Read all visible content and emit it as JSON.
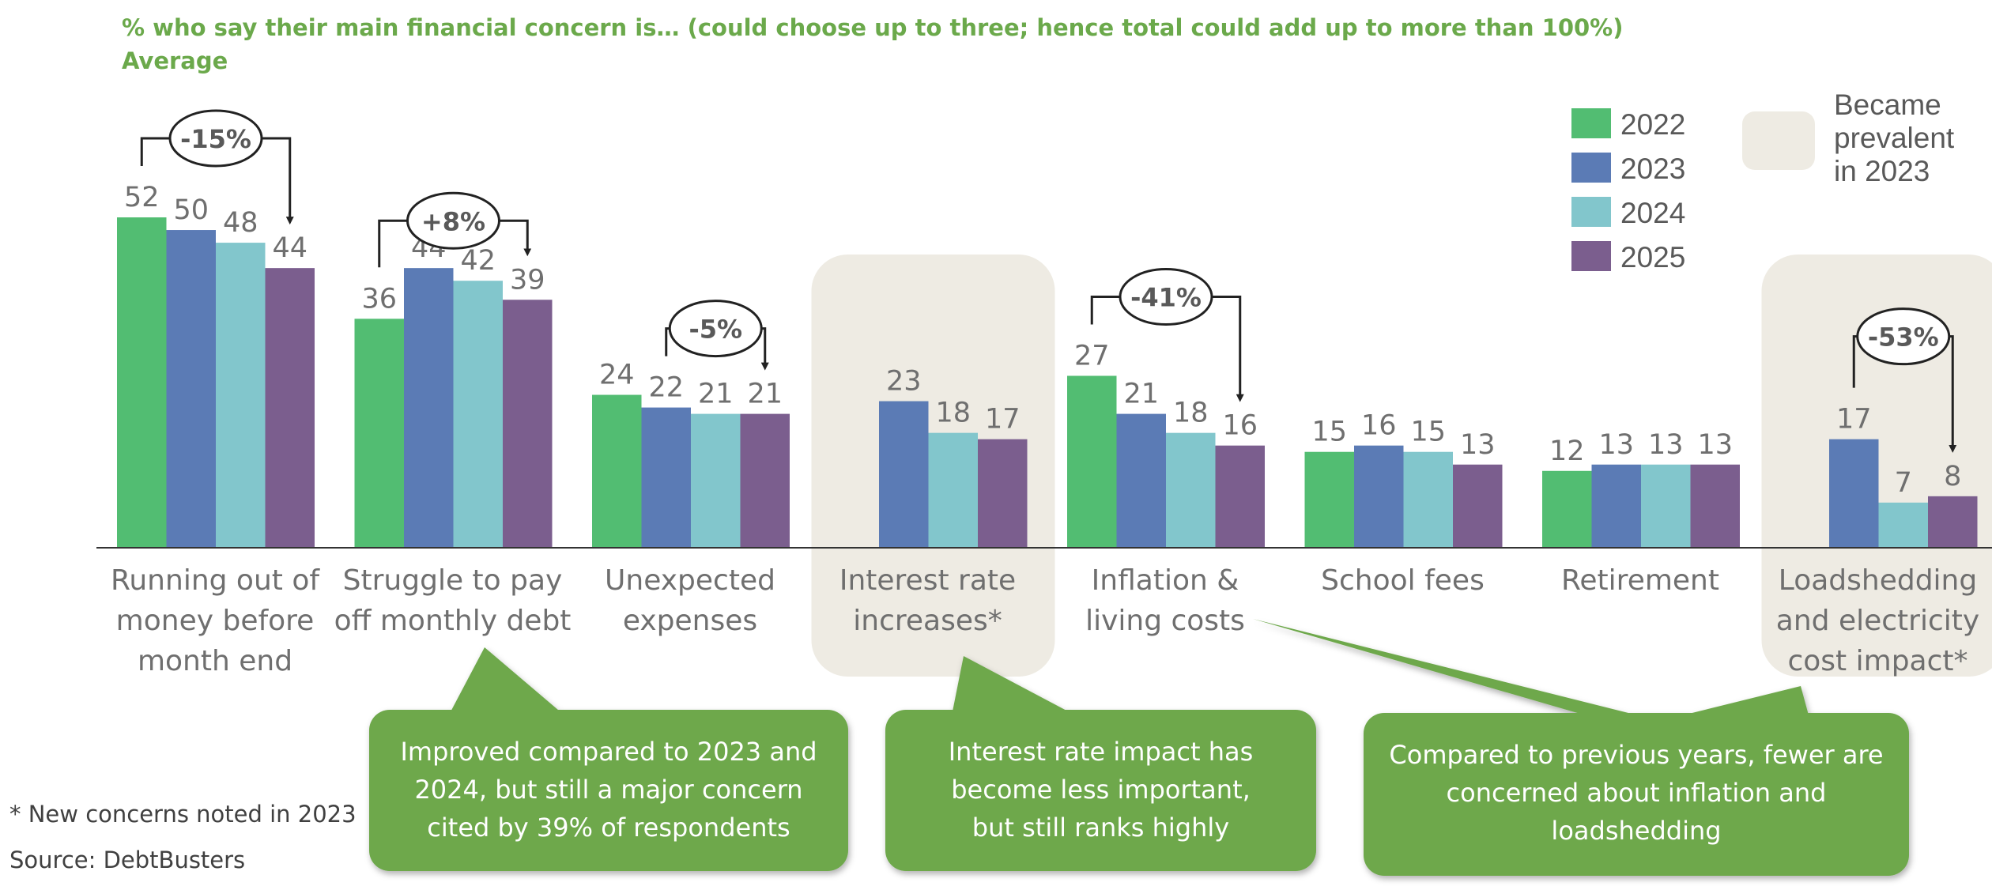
{
  "titles": {
    "line1": "% who say their main financial concern is… (could choose up to three; hence total could add up to more than 100%)",
    "line2": "Average"
  },
  "colors": {
    "2022": "#52bd72",
    "2023": "#5b7bb5",
    "2024": "#82c6cc",
    "2025": "#7b5e8e",
    "highlight": "#eeebe3",
    "callout": "#6ea84c",
    "title": "#6ba94b"
  },
  "chart_data": {
    "type": "bar",
    "categories": [
      "Running out of money before month end",
      "Struggle to pay off monthly debt",
      "Unexpected expenses",
      "Interest rate increases*",
      "Inflation & living costs",
      "School fees",
      "Retirement",
      "Loadshedding and electricity cost impact*"
    ],
    "category_lines": [
      [
        "Running out of",
        "money before",
        "month end"
      ],
      [
        "Struggle to pay",
        "off monthly debt"
      ],
      [
        "Unexpected",
        "expenses"
      ],
      [
        "Interest rate",
        "increases*"
      ],
      [
        "Inflation &",
        "living costs"
      ],
      [
        "School fees"
      ],
      [
        "Retirement"
      ],
      [
        "Loadshedding",
        "and electricity",
        "cost impact*"
      ]
    ],
    "series": [
      {
        "name": "2022",
        "values": [
          52,
          36,
          24,
          null,
          27,
          15,
          12,
          null
        ]
      },
      {
        "name": "2023",
        "values": [
          50,
          44,
          22,
          23,
          21,
          16,
          13,
          17
        ]
      },
      {
        "name": "2024",
        "values": [
          48,
          42,
          21,
          18,
          18,
          15,
          13,
          7
        ]
      },
      {
        "name": "2025",
        "values": [
          44,
          39,
          21,
          17,
          16,
          13,
          13,
          8
        ]
      }
    ],
    "highlighted_categories": [
      3,
      7
    ],
    "changes": [
      {
        "category": 0,
        "from_series": 0,
        "to_series": 3,
        "label": "-15%"
      },
      {
        "category": 1,
        "from_series": 0,
        "to_series": 3,
        "label": "+8%"
      },
      {
        "category": 2,
        "from_series": 1,
        "to_series": 3,
        "label": "-5%"
      },
      {
        "category": 4,
        "from_series": 0,
        "to_series": 3,
        "label": "-41%"
      },
      {
        "category": 7,
        "from_series": 1,
        "to_series": 3,
        "label": "-53%"
      }
    ],
    "legend": {
      "entries": [
        "2022",
        "2023",
        "2024",
        "2025"
      ],
      "highlight_label": [
        "Became",
        "prevalent",
        "in 2023"
      ],
      "position": "top-right"
    },
    "ylim": [
      0,
      60
    ],
    "grid": false
  },
  "callouts": [
    {
      "lines": [
        "Improved compared to 2023 and",
        "2024, but still a major concern",
        "cited by 39% of respondents"
      ]
    },
    {
      "lines": [
        "Interest rate impact has",
        "become less important,",
        "but still ranks highly"
      ]
    },
    {
      "lines": [
        "Compared to previous years, fewer are",
        "concerned about inflation and",
        "loadshedding"
      ]
    }
  ],
  "footnote": "* New concerns noted in 2023",
  "source": "Source: DebtBusters"
}
